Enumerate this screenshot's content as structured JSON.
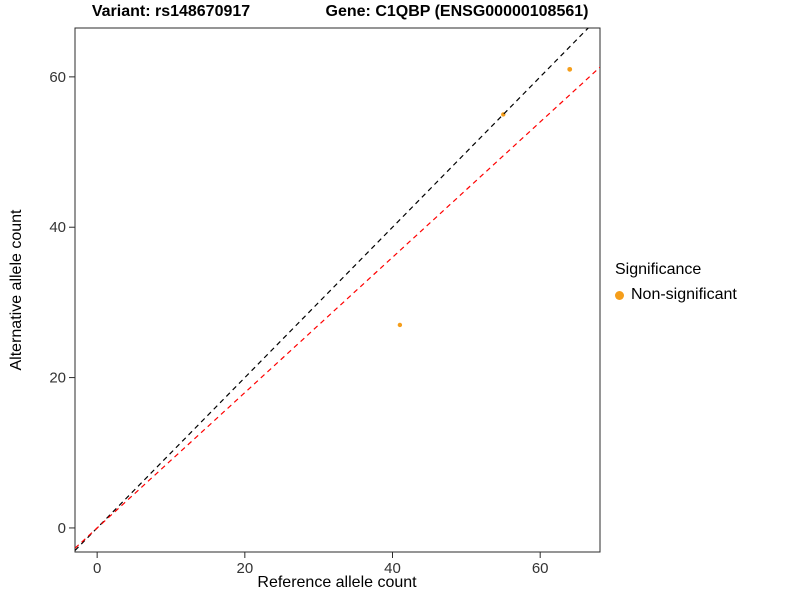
{
  "titles": {
    "left": "Variant: rs148670917",
    "right": "Gene: C1QBP (ENSG00000108561)"
  },
  "chart_data": {
    "type": "scatter",
    "title": "Variant: rs148670917 — Gene: C1QBP (ENSG00000108561)",
    "xlabel": "Reference allele count",
    "ylabel": "Alternative allele count",
    "xlim": [
      -3,
      68.1
    ],
    "ylim": [
      -3.2,
      66.5
    ],
    "xticks": [
      0,
      20,
      40,
      60
    ],
    "yticks": [
      0,
      20,
      40,
      60
    ],
    "grid": false,
    "legend_position": "right",
    "points": [
      {
        "x": 41,
        "y": 27,
        "color": "#F59E1B",
        "size": 2.2
      },
      {
        "x": 55,
        "y": 55,
        "color": "#F59E1B",
        "size": 2.2
      },
      {
        "x": 64,
        "y": 61,
        "color": "#F59E1B",
        "size": 2.4
      }
    ],
    "lines": [
      {
        "name": "identity",
        "slope": 1.0,
        "intercept": 0,
        "color": "#000000",
        "dash": "5 4"
      },
      {
        "name": "fit",
        "slope": 0.9,
        "intercept": 0,
        "color": "#FF0000",
        "dash": "5 4"
      }
    ],
    "legend": {
      "title": "Significance",
      "items": [
        {
          "label": "Non-significant",
          "color": "#F59E1B"
        }
      ]
    }
  }
}
